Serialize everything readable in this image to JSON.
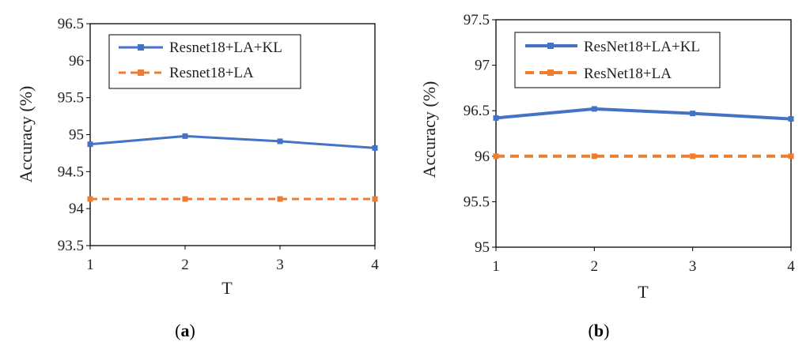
{
  "chart_data": [
    {
      "type": "line",
      "caption_open": "(",
      "caption_letter": "a",
      "caption_close": ")",
      "xlabel": "T",
      "ylabel": "Accuracy (%)",
      "x": [
        1,
        2,
        3,
        4
      ],
      "xticks": [
        "1",
        "2",
        "3",
        "4"
      ],
      "ylim": [
        93.5,
        96.5
      ],
      "yticks": [
        "93.5",
        "94",
        "94.5",
        "95",
        "95.5",
        "96",
        "96.5"
      ],
      "legend_position": "top",
      "series": [
        {
          "name": "Resnet18+LA+KL",
          "values": [
            94.87,
            94.98,
            94.91,
            94.82
          ],
          "color": "#4472C4",
          "style": "solid"
        },
        {
          "name": "Resnet18+LA",
          "values": [
            94.13,
            94.13,
            94.13,
            94.13
          ],
          "color": "#ED7D31",
          "style": "dashed"
        }
      ]
    },
    {
      "type": "line",
      "caption_open": "(",
      "caption_letter": "b",
      "caption_close": ")",
      "xlabel": "T",
      "ylabel": "Accuracy (%)",
      "x": [
        1,
        2,
        3,
        4
      ],
      "xticks": [
        "1",
        "2",
        "3",
        "4"
      ],
      "ylim": [
        95,
        97.5
      ],
      "yticks": [
        "95",
        "95.5",
        "96",
        "96.5",
        "97",
        "97.5"
      ],
      "legend_position": "top",
      "series": [
        {
          "name": "ResNet18+LA+KL",
          "values": [
            96.42,
            96.52,
            96.47,
            96.41
          ],
          "color": "#4472C4",
          "style": "solid"
        },
        {
          "name": "ResNet18+LA",
          "values": [
            96.0,
            96.0,
            96.0,
            96.0
          ],
          "color": "#ED7D31",
          "style": "dashed"
        }
      ]
    }
  ]
}
